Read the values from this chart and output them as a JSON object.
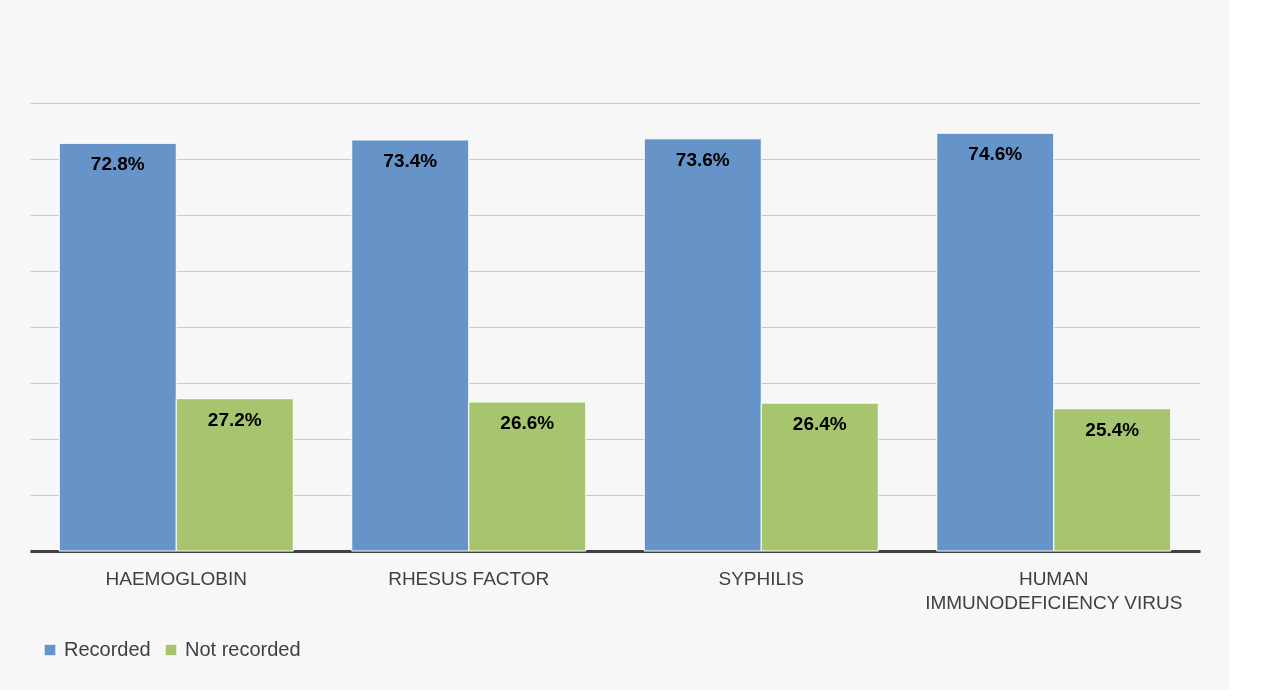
{
  "chart_data": {
    "type": "bar",
    "categories": [
      "HAEMOGLOBIN",
      "RHESUS FACTOR",
      "SYPHILIS",
      "HUMAN IMMUNODEFICIENCY VIRUS"
    ],
    "series": [
      {
        "name": "Recorded",
        "color": "#6693c8",
        "values": [
          72.8,
          73.4,
          73.6,
          74.6
        ],
        "value_labels": [
          "72.8%",
          "73.4%",
          "73.6%",
          "74.6%"
        ]
      },
      {
        "name": "Not recorded",
        "color": "#a6c56e",
        "values": [
          27.2,
          26.6,
          26.4,
          25.4
        ],
        "value_labels": [
          "27.2%",
          "26.6%",
          "26.4%",
          "25.4%"
        ]
      }
    ],
    "ylim": [
      0,
      80
    ],
    "yticks": [
      {
        "value": 0,
        "label": null
      },
      {
        "value": 10,
        "label": null
      },
      {
        "value": 20,
        "label": null
      },
      {
        "value": 30,
        "label": null
      },
      {
        "value": 40,
        "label": null
      },
      {
        "value": 50,
        "label": null
      },
      {
        "value": 60,
        "label": null
      },
      {
        "value": 70,
        "label": null
      },
      {
        "value": 80,
        "label": null
      }
    ],
    "grid": "y",
    "legend": "bottom",
    "tick_labels": "x"
  }
}
